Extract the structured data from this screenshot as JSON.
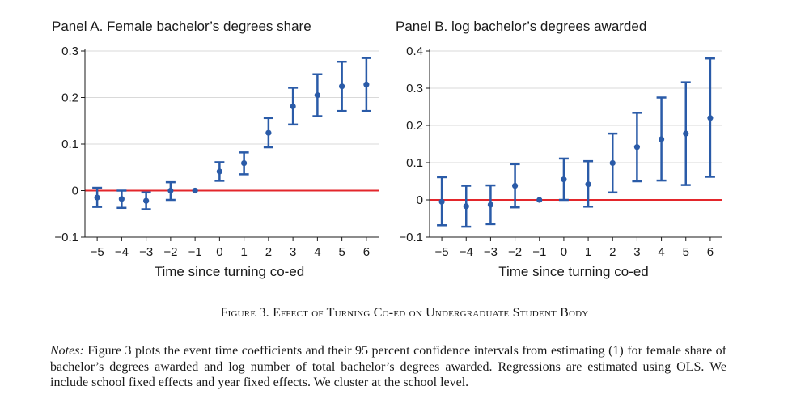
{
  "chart_data": [
    {
      "type": "scatter",
      "title": "Panel A. Female bachelor’s degrees share",
      "xlabel": "Time since turning co-ed",
      "ylabel": "",
      "x": [
        -5,
        -4,
        -3,
        -2,
        -1,
        0,
        1,
        2,
        3,
        4,
        5,
        6
      ],
      "xlim": [
        -5.5,
        6.5
      ],
      "ylim": [
        -0.1,
        0.3
      ],
      "yticks": [
        -0.1,
        0,
        0.1,
        0.2,
        0.3
      ],
      "ytick_labels": [
        "−0.1",
        "0",
        "0.1",
        "0.2",
        "0.3"
      ],
      "xtick_labels": [
        "−5",
        "−4",
        "−3",
        "−2",
        "−1",
        "0",
        "1",
        "2",
        "3",
        "4",
        "5",
        "6"
      ],
      "grid": true,
      "reference_line": 0,
      "series": [
        {
          "estimate": [
            -0.015,
            -0.018,
            -0.022,
            0.0,
            0.0,
            0.041,
            0.059,
            0.124,
            0.181,
            0.205,
            0.224,
            0.228
          ],
          "ci_low": [
            -0.035,
            -0.037,
            -0.04,
            -0.02,
            0.0,
            0.021,
            0.035,
            0.093,
            0.142,
            0.16,
            0.171,
            0.171
          ],
          "ci_high": [
            0.006,
            0.0,
            -0.004,
            0.018,
            0.0,
            0.061,
            0.082,
            0.156,
            0.221,
            0.25,
            0.277,
            0.285
          ]
        }
      ]
    },
    {
      "type": "scatter",
      "title": "Panel B. log bachelor’s degrees awarded",
      "xlabel": "Time since turning co-ed",
      "ylabel": "",
      "x": [
        -5,
        -4,
        -3,
        -2,
        -1,
        0,
        1,
        2,
        3,
        4,
        5,
        6
      ],
      "xlim": [
        -5.5,
        6.5
      ],
      "ylim": [
        -0.1,
        0.4
      ],
      "yticks": [
        -0.1,
        0,
        0.1,
        0.2,
        0.3,
        0.4
      ],
      "ytick_labels": [
        "−0.1",
        "0",
        "0.1",
        "0.2",
        "0.3",
        "0.4"
      ],
      "xtick_labels": [
        "−5",
        "−4",
        "−3",
        "−2",
        "−1",
        "0",
        "1",
        "2",
        "3",
        "4",
        "5",
        "6"
      ],
      "grid": true,
      "reference_line": 0,
      "series": [
        {
          "estimate": [
            -0.005,
            -0.017,
            -0.013,
            0.038,
            0.0,
            0.055,
            0.042,
            0.099,
            0.142,
            0.163,
            0.178,
            0.22
          ],
          "ci_low": [
            -0.068,
            -0.072,
            -0.065,
            -0.02,
            0.0,
            0.0,
            -0.018,
            0.02,
            0.05,
            0.052,
            0.04,
            0.062
          ],
          "ci_high": [
            0.061,
            0.038,
            0.039,
            0.096,
            0.0,
            0.111,
            0.104,
            0.178,
            0.234,
            0.275,
            0.316,
            0.38
          ]
        }
      ]
    }
  ],
  "figure_caption": "Figure 3. Effect of Turning Co-ed on Undergraduate Student Body",
  "notes_label": "Notes:",
  "notes_text": "Figure 3 plots the event time coefficients and their 95 percent confidence intervals from estimating (1) for female share of bachelor’s degrees awarded and log number of total bachelor’s degrees awarded. Regressions are estimated using OLS. We include school fixed effects and year fixed effects. We cluster at the school level.",
  "colors": {
    "marker": "#2a5ba8",
    "reference_line": "#e3262b",
    "grid": "#d9d9d9",
    "axis": "#1a1a1a"
  }
}
